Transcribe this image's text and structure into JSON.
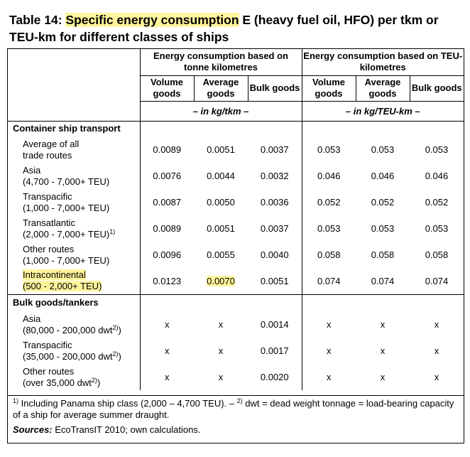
{
  "title": {
    "prefix": "Table 14: ",
    "highlight": "Specific energy consumption",
    "rest": " E (heavy fuel oil, HFO) per tkm or TEU-km for different classes of ships"
  },
  "header": {
    "group1": "Energy consumption based on tonne kilometres",
    "group2": "Energy consumption based on TEU-kilometres",
    "sub": [
      "Volume goods",
      "Average goods",
      "Bulk goods",
      "Volume goods",
      "Average goods",
      "Bulk goods"
    ],
    "unit1": "– in kg/tkm –",
    "unit2": "– in kg/TEU-km –"
  },
  "sections": [
    {
      "name": "Container ship transport",
      "rows": [
        {
          "l1": "Average of all",
          "l2": "trade routes",
          "values": [
            "0.0089",
            "0.0051",
            "0.0037",
            "0.053",
            "0.053",
            "0.053"
          ]
        },
        {
          "l1": "Asia",
          "l2": "(4,700 - 7,000+ TEU)",
          "values": [
            "0.0076",
            "0.0044",
            "0.0032",
            "0.046",
            "0.046",
            "0.046"
          ]
        },
        {
          "l1": "Transpacific",
          "l2": "(1,000 - 7,000+ TEU)",
          "values": [
            "0.0087",
            "0.0050",
            "0.0036",
            "0.052",
            "0.052",
            "0.052"
          ]
        },
        {
          "l1": "Transatlantic",
          "l2": "(2,000 - 7,000+ TEU)",
          "sup": "1)",
          "values": [
            "0.0089",
            "0.0051",
            "0.0037",
            "0.053",
            "0.053",
            "0.053"
          ]
        },
        {
          "l1": "Other routes",
          "l2": "(1,000 - 7,000+ TEU)",
          "values": [
            "0.0096",
            "0.0055",
            "0.0040",
            "0.058",
            "0.058",
            "0.058"
          ]
        },
        {
          "l1": "Intracontinental",
          "l2": "(500 - 2,000+ TEU)",
          "values": [
            "0.0123",
            "0.0070",
            "0.0051",
            "0.074",
            "0.074",
            "0.074"
          ]
        }
      ]
    },
    {
      "name": "Bulk goods/tankers",
      "rows": [
        {
          "l1": "Asia",
          "l2": "(80,000 - 200,000 dwt",
          "sup": "2)",
          "l2end": ")",
          "values": [
            "x",
            "x",
            "0.0014",
            "x",
            "x",
            "x"
          ]
        },
        {
          "l1": "Transpacific",
          "l2": "(35,000 - 200,000 dwt",
          "sup": "2)",
          "l2end": ")",
          "values": [
            "x",
            "x",
            "0.0017",
            "x",
            "x",
            "x"
          ]
        },
        {
          "l1": "Other routes",
          "l2": "(over 35,000 dwt",
          "sup": "2)",
          "l2end": ")",
          "values": [
            "x",
            "x",
            "0.0020",
            "x",
            "x",
            "x"
          ]
        }
      ]
    }
  ],
  "footnotes": {
    "fn1_mark": "1)",
    "fn1_text": " Including Panama ship class (2,000 – 4,700 TEU). – ",
    "fn2_mark": "2)",
    "fn2_text": " dwt = dead weight tonnage = load-bearing capacity of a ship for average summer draught.",
    "sources_label": "Sources:",
    "sources_text": " EcoTransIT 2010; own calculations."
  },
  "colors": {
    "highlight": "#fff59d",
    "text": "#000000",
    "border": "#000000"
  }
}
